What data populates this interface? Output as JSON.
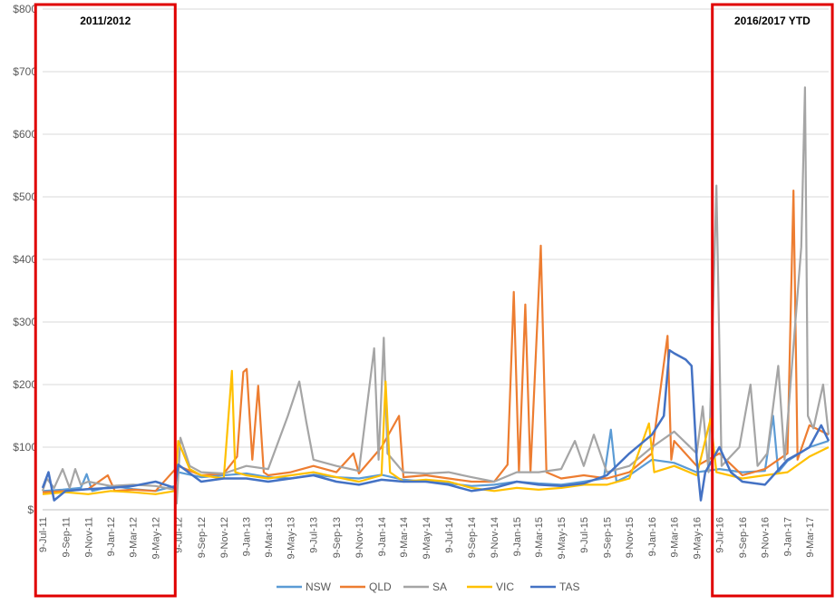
{
  "chart_data": {
    "type": "line",
    "title": "",
    "xlabel": "",
    "ylabel": "",
    "ylim": [
      0,
      800
    ],
    "yticks": [
      0,
      100,
      200,
      300,
      400,
      500,
      600,
      700,
      800
    ],
    "ytick_labels": [
      "$-",
      "$100",
      "$200",
      "$300",
      "$400",
      "$500",
      "$600",
      "$700",
      "$800"
    ],
    "x_start": "2011-07-09",
    "x_end": "2017-04-30",
    "x_tick_labels": [
      "9-Jul-11",
      "9-Sep-11",
      "9-Nov-11",
      "9-Jan-12",
      "9-Mar-12",
      "9-May-12",
      "9-Jul-12",
      "9-Sep-12",
      "9-Nov-12",
      "9-Jan-13",
      "9-Mar-13",
      "9-May-13",
      "9-Jul-13",
      "9-Sep-13",
      "9-Nov-13",
      "9-Jan-14",
      "9-Mar-14",
      "9-May-14",
      "9-Jul-14",
      "9-Sep-14",
      "9-Nov-14",
      "9-Jan-15",
      "9-Mar-15",
      "9-May-15",
      "9-Jul-15",
      "9-Sep-15",
      "9-Nov-15",
      "9-Jan-16",
      "9-Mar-16",
      "9-May-16",
      "9-Jul-16",
      "9-Sep-16",
      "9-Nov-16",
      "9-Jan-17",
      "9-Mar-17"
    ],
    "grid": "horizontal",
    "legend_position": "bottom",
    "series": [
      {
        "name": "NSW",
        "color": "#5B9BD5",
        "points": [
          [
            "2011-07-09",
            30
          ],
          [
            "2011-09-01",
            32
          ],
          [
            "2011-10-20",
            35
          ],
          [
            "2011-11-05",
            57
          ],
          [
            "2011-11-20",
            30
          ],
          [
            "2012-01-15",
            38
          ],
          [
            "2012-03-09",
            33
          ],
          [
            "2012-05-09",
            30
          ],
          [
            "2012-06-30",
            38
          ],
          [
            "2012-07-09",
            60
          ],
          [
            "2012-09-09",
            52
          ],
          [
            "2012-11-09",
            55
          ],
          [
            "2013-01-09",
            58
          ],
          [
            "2013-03-09",
            52
          ],
          [
            "2013-05-09",
            50
          ],
          [
            "2013-07-09",
            56
          ],
          [
            "2013-09-09",
            52
          ],
          [
            "2013-11-09",
            50
          ],
          [
            "2014-01-09",
            56
          ],
          [
            "2014-03-09",
            48
          ],
          [
            "2014-05-09",
            45
          ],
          [
            "2014-07-09",
            42
          ],
          [
            "2014-09-09",
            38
          ],
          [
            "2014-11-09",
            40
          ],
          [
            "2015-01-09",
            45
          ],
          [
            "2015-03-09",
            42
          ],
          [
            "2015-05-09",
            40
          ],
          [
            "2015-07-09",
            45
          ],
          [
            "2015-09-01",
            50
          ],
          [
            "2015-09-20",
            128
          ],
          [
            "2015-10-05",
            45
          ],
          [
            "2015-11-09",
            55
          ],
          [
            "2016-01-09",
            80
          ],
          [
            "2016-03-09",
            75
          ],
          [
            "2016-05-09",
            60
          ],
          [
            "2016-07-09",
            65
          ],
          [
            "2016-09-09",
            60
          ],
          [
            "2016-11-09",
            62
          ],
          [
            "2016-12-01",
            150
          ],
          [
            "2016-12-15",
            60
          ],
          [
            "2017-01-09",
            78
          ],
          [
            "2017-03-09",
            100
          ],
          [
            "2017-04-30",
            110
          ]
        ]
      },
      {
        "name": "QLD",
        "color": "#ED7D31",
        "points": [
          [
            "2011-07-09",
            28
          ],
          [
            "2011-09-09",
            30
          ],
          [
            "2011-11-09",
            33
          ],
          [
            "2012-01-01",
            55
          ],
          [
            "2012-01-20",
            30
          ],
          [
            "2012-03-09",
            32
          ],
          [
            "2012-05-09",
            30
          ],
          [
            "2012-07-09",
            70
          ],
          [
            "2012-09-09",
            55
          ],
          [
            "2012-11-09",
            58
          ],
          [
            "2012-12-15",
            85
          ],
          [
            "2013-01-01",
            220
          ],
          [
            "2013-01-10",
            225
          ],
          [
            "2013-01-25",
            80
          ],
          [
            "2013-02-10",
            198
          ],
          [
            "2013-02-25",
            60
          ],
          [
            "2013-03-09",
            55
          ],
          [
            "2013-05-09",
            60
          ],
          [
            "2013-07-09",
            70
          ],
          [
            "2013-09-09",
            60
          ],
          [
            "2013-10-25",
            90
          ],
          [
            "2013-11-09",
            58
          ],
          [
            "2014-01-09",
            100
          ],
          [
            "2014-02-25",
            150
          ],
          [
            "2014-03-09",
            52
          ],
          [
            "2014-05-09",
            55
          ],
          [
            "2014-07-09",
            50
          ],
          [
            "2014-09-09",
            45
          ],
          [
            "2014-11-09",
            45
          ],
          [
            "2014-12-15",
            72
          ],
          [
            "2015-01-01",
            348
          ],
          [
            "2015-01-15",
            60
          ],
          [
            "2015-02-01",
            328
          ],
          [
            "2015-02-15",
            60
          ],
          [
            "2015-03-15",
            422
          ],
          [
            "2015-03-30",
            60
          ],
          [
            "2015-05-09",
            50
          ],
          [
            "2015-07-09",
            55
          ],
          [
            "2015-09-09",
            50
          ],
          [
            "2015-11-09",
            60
          ],
          [
            "2016-01-09",
            90
          ],
          [
            "2016-02-20",
            278
          ],
          [
            "2016-03-01",
            80
          ],
          [
            "2016-03-09",
            110
          ],
          [
            "2016-05-09",
            70
          ],
          [
            "2016-07-09",
            90
          ],
          [
            "2016-09-09",
            55
          ],
          [
            "2016-11-09",
            65
          ],
          [
            "2017-01-09",
            90
          ],
          [
            "2017-01-25",
            510
          ],
          [
            "2017-02-05",
            80
          ],
          [
            "2017-03-09",
            135
          ],
          [
            "2017-04-30",
            120
          ]
        ]
      },
      {
        "name": "SA",
        "color": "#A5A5A5",
        "points": [
          [
            "2011-07-09",
            30
          ],
          [
            "2011-07-20",
            50
          ],
          [
            "2011-08-09",
            35
          ],
          [
            "2011-09-01",
            65
          ],
          [
            "2011-09-20",
            35
          ],
          [
            "2011-10-05",
            65
          ],
          [
            "2011-10-20",
            40
          ],
          [
            "2011-11-09",
            45
          ],
          [
            "2012-01-09",
            38
          ],
          [
            "2012-03-09",
            40
          ],
          [
            "2012-05-09",
            38
          ],
          [
            "2012-06-30",
            32
          ],
          [
            "2012-07-05",
            10
          ],
          [
            "2012-07-15",
            115
          ],
          [
            "2012-08-09",
            70
          ],
          [
            "2012-09-09",
            60
          ],
          [
            "2012-11-09",
            58
          ],
          [
            "2013-01-09",
            70
          ],
          [
            "2013-03-09",
            65
          ],
          [
            "2013-05-01",
            150
          ],
          [
            "2013-06-01",
            205
          ],
          [
            "2013-06-20",
            140
          ],
          [
            "2013-07-09",
            80
          ],
          [
            "2013-09-09",
            70
          ],
          [
            "2013-11-09",
            62
          ],
          [
            "2013-12-20",
            258
          ],
          [
            "2014-01-01",
            80
          ],
          [
            "2014-01-15",
            275
          ],
          [
            "2014-01-25",
            90
          ],
          [
            "2014-03-09",
            60
          ],
          [
            "2014-05-09",
            58
          ],
          [
            "2014-07-09",
            60
          ],
          [
            "2014-09-09",
            52
          ],
          [
            "2014-11-09",
            45
          ],
          [
            "2015-01-09",
            60
          ],
          [
            "2015-03-09",
            60
          ],
          [
            "2015-05-09",
            65
          ],
          [
            "2015-06-15",
            110
          ],
          [
            "2015-07-09",
            70
          ],
          [
            "2015-08-05",
            120
          ],
          [
            "2015-09-09",
            60
          ],
          [
            "2015-11-09",
            70
          ],
          [
            "2016-01-09",
            100
          ],
          [
            "2016-03-09",
            125
          ],
          [
            "2016-05-09",
            90
          ],
          [
            "2016-05-25",
            165
          ],
          [
            "2016-06-10",
            60
          ],
          [
            "2016-07-01",
            518
          ],
          [
            "2016-07-15",
            70
          ],
          [
            "2016-09-01",
            100
          ],
          [
            "2016-10-01",
            200
          ],
          [
            "2016-10-20",
            70
          ],
          [
            "2016-11-15",
            90
          ],
          [
            "2016-12-15",
            230
          ],
          [
            "2017-01-01",
            80
          ],
          [
            "2017-02-15",
            420
          ],
          [
            "2017-02-25",
            675
          ],
          [
            "2017-03-05",
            150
          ],
          [
            "2017-03-20",
            130
          ],
          [
            "2017-04-15",
            200
          ],
          [
            "2017-04-30",
            120
          ]
        ]
      },
      {
        "name": "VIC",
        "color": "#FFC000",
        "points": [
          [
            "2011-07-09",
            25
          ],
          [
            "2011-09-09",
            28
          ],
          [
            "2011-11-09",
            25
          ],
          [
            "2012-01-09",
            30
          ],
          [
            "2012-03-09",
            28
          ],
          [
            "2012-05-09",
            25
          ],
          [
            "2012-06-30",
            30
          ],
          [
            "2012-07-09",
            110
          ],
          [
            "2012-08-09",
            65
          ],
          [
            "2012-09-09",
            55
          ],
          [
            "2012-11-09",
            50
          ],
          [
            "2012-12-01",
            222
          ],
          [
            "2012-12-10",
            60
          ],
          [
            "2013-01-09",
            55
          ],
          [
            "2013-03-09",
            50
          ],
          [
            "2013-05-09",
            55
          ],
          [
            "2013-07-09",
            60
          ],
          [
            "2013-09-09",
            52
          ],
          [
            "2013-11-09",
            45
          ],
          [
            "2014-01-09",
            55
          ],
          [
            "2014-01-20",
            205
          ],
          [
            "2014-02-01",
            60
          ],
          [
            "2014-03-09",
            45
          ],
          [
            "2014-05-09",
            48
          ],
          [
            "2014-07-09",
            45
          ],
          [
            "2014-09-09",
            35
          ],
          [
            "2014-11-09",
            30
          ],
          [
            "2015-01-09",
            35
          ],
          [
            "2015-03-09",
            32
          ],
          [
            "2015-05-09",
            35
          ],
          [
            "2015-07-09",
            40
          ],
          [
            "2015-09-09",
            40
          ],
          [
            "2015-11-09",
            50
          ],
          [
            "2016-01-01",
            138
          ],
          [
            "2016-01-15",
            60
          ],
          [
            "2016-03-09",
            70
          ],
          [
            "2016-05-09",
            55
          ],
          [
            "2016-06-15",
            145
          ],
          [
            "2016-07-01",
            60
          ],
          [
            "2016-09-09",
            50
          ],
          [
            "2016-11-09",
            55
          ],
          [
            "2017-01-09",
            60
          ],
          [
            "2017-03-09",
            85
          ],
          [
            "2017-04-30",
            100
          ]
        ]
      },
      {
        "name": "TAS",
        "color": "#4472C4",
        "points": [
          [
            "2011-07-09",
            35
          ],
          [
            "2011-07-25",
            60
          ],
          [
            "2011-08-09",
            15
          ],
          [
            "2011-09-09",
            30
          ],
          [
            "2011-11-09",
            33
          ],
          [
            "2012-01-09",
            35
          ],
          [
            "2012-03-09",
            38
          ],
          [
            "2012-05-09",
            45
          ],
          [
            "2012-06-30",
            35
          ],
          [
            "2012-07-09",
            72
          ],
          [
            "2012-09-09",
            45
          ],
          [
            "2012-11-09",
            50
          ],
          [
            "2013-01-09",
            50
          ],
          [
            "2013-03-09",
            45
          ],
          [
            "2013-05-09",
            50
          ],
          [
            "2013-07-09",
            55
          ],
          [
            "2013-09-09",
            45
          ],
          [
            "2013-11-09",
            40
          ],
          [
            "2014-01-09",
            48
          ],
          [
            "2014-03-09",
            45
          ],
          [
            "2014-05-09",
            45
          ],
          [
            "2014-07-09",
            40
          ],
          [
            "2014-09-09",
            30
          ],
          [
            "2014-11-09",
            35
          ],
          [
            "2015-01-09",
            45
          ],
          [
            "2015-03-09",
            40
          ],
          [
            "2015-05-09",
            38
          ],
          [
            "2015-07-09",
            42
          ],
          [
            "2015-09-09",
            55
          ],
          [
            "2015-11-09",
            90
          ],
          [
            "2016-01-09",
            120
          ],
          [
            "2016-02-10",
            150
          ],
          [
            "2016-02-25",
            255
          ],
          [
            "2016-03-09",
            250
          ],
          [
            "2016-04-09",
            240
          ],
          [
            "2016-04-25",
            230
          ],
          [
            "2016-05-09",
            80
          ],
          [
            "2016-05-20",
            15
          ],
          [
            "2016-06-01",
            60
          ],
          [
            "2016-07-09",
            100
          ],
          [
            "2016-08-09",
            60
          ],
          [
            "2016-09-09",
            45
          ],
          [
            "2016-11-09",
            40
          ],
          [
            "2017-01-09",
            80
          ],
          [
            "2017-02-09",
            90
          ],
          [
            "2017-03-09",
            100
          ],
          [
            "2017-04-10",
            135
          ],
          [
            "2017-04-30",
            110
          ]
        ]
      }
    ],
    "annotations": [
      {
        "label": "2011/2012",
        "x_from": "2011-06-20",
        "x_to": "2012-07-01"
      },
      {
        "label": "2016/2017 YTD",
        "x_from": "2016-06-20",
        "x_to": "2017-05-10"
      }
    ],
    "annotation_color": "#E00000"
  }
}
